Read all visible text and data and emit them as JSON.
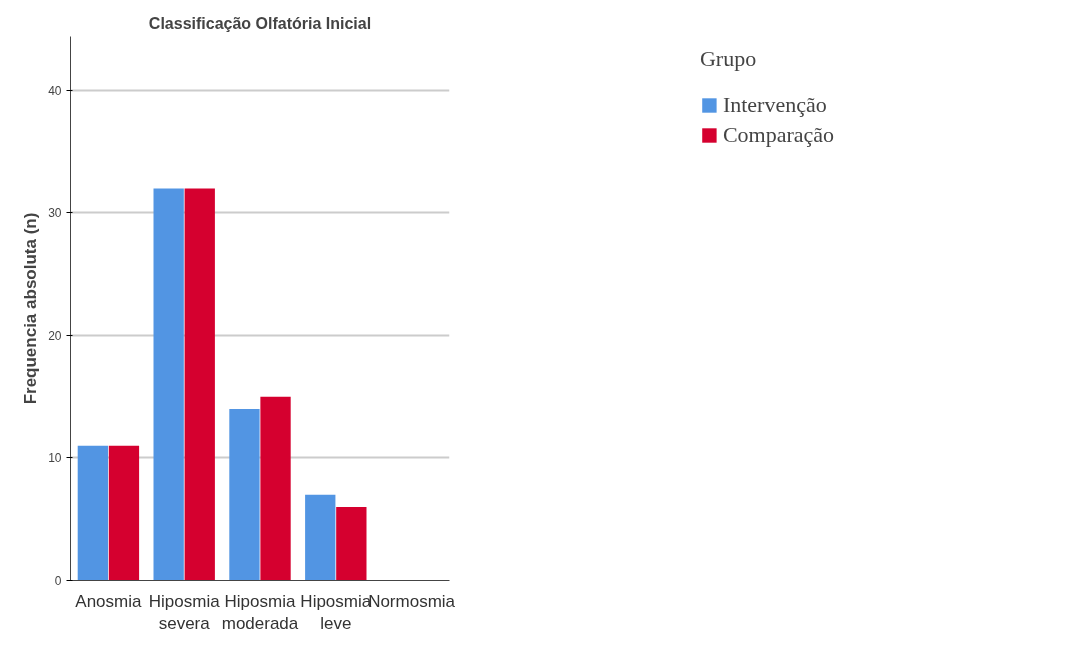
{
  "chart_data": {
    "type": "bar",
    "title": "Classificação Olfatória Inicial",
    "ylabel": "Frequencia absoluta (n)",
    "legend_title": "Grupo",
    "categories": [
      "Anosmia",
      "Hiposmia severa",
      "Hiposmia moderada",
      "Hiposmia leve",
      "Normosmia"
    ],
    "series": [
      {
        "name": "Intervenção",
        "color": "#5295e3",
        "values": [
          11,
          32,
          14,
          7,
          0
        ]
      },
      {
        "name": "Comparação",
        "color": "#d5002f",
        "values": [
          11,
          32,
          15,
          6,
          0
        ]
      }
    ],
    "ylim": [
      0,
      44.4
    ],
    "yticks": [
      0,
      10,
      20,
      30,
      40
    ],
    "grid": "y",
    "legend": "top right"
  }
}
